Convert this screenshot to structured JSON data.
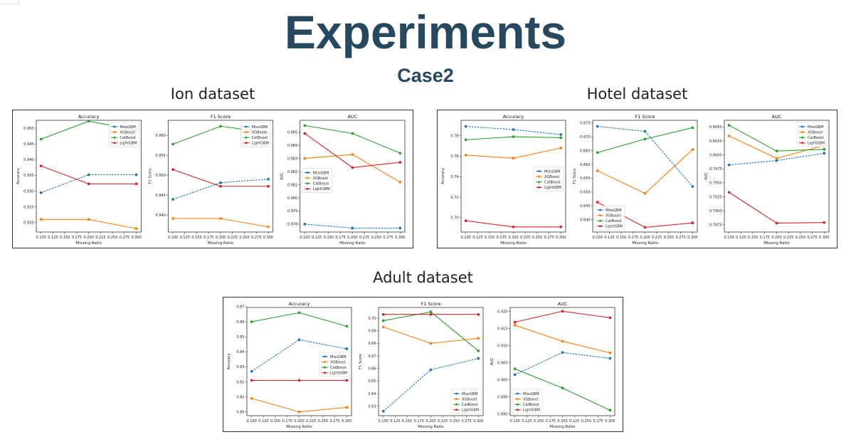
{
  "page": {
    "title": "Experiments",
    "subtitle": "Case2"
  },
  "series_colors": {
    "MissGBM": "#1f77b4",
    "XGBoost": "#ff7f0e",
    "CatBoost": "#2ca02c",
    "LightGBM": "#d62728"
  },
  "chart_data": [
    {
      "dataset": "Ion dataset",
      "subplots": [
        {
          "type": "line",
          "title": "Accuracy",
          "xlabel": "Missing Ratio",
          "ylabel": "Accuracy",
          "x": [
            0.1,
            0.2,
            0.3
          ],
          "xlim": [
            0.09,
            0.31
          ],
          "ylim": [
            0.917,
            0.9525
          ],
          "xticks": [
            "0.100",
            "0.125",
            "0.150",
            "0.175",
            "0.200",
            "0.225",
            "0.250",
            "0.275",
            "0.300"
          ],
          "yticks": [
            0.92,
            0.925,
            0.93,
            0.935,
            0.94,
            0.945,
            0.95
          ],
          "ydec": 3,
          "legend": "top-right",
          "series": [
            {
              "name": "MissGBM",
              "values": [
                0.9295,
                0.9352,
                0.9352
              ]
            },
            {
              "name": "XGBoost",
              "values": [
                0.921,
                0.921,
                0.9181
              ]
            },
            {
              "name": "CatBoost",
              "values": [
                0.9465,
                0.9522,
                0.9494
              ]
            },
            {
              "name": "LightGBM",
              "values": [
                0.938,
                0.9323,
                0.9323
              ]
            }
          ]
        },
        {
          "type": "line",
          "title": "F1 Score",
          "xlabel": "Missing Ratio",
          "ylabel": "F1 Score",
          "x": [
            0.1,
            0.2,
            0.3
          ],
          "xlim": [
            0.09,
            0.31
          ],
          "ylim": [
            0.9357,
            0.9638
          ],
          "xticks": [
            "0.100",
            "0.125",
            "0.150",
            "0.175",
            "0.200",
            "0.225",
            "0.250",
            "0.275",
            "0.300"
          ],
          "yticks": [
            0.94,
            0.945,
            0.95,
            0.955,
            0.96
          ],
          "ydec": 3,
          "legend": "top-right",
          "series": [
            {
              "name": "MissGBM",
              "values": [
                0.9439,
                0.9481,
                0.949
              ]
            },
            {
              "name": "XGBoost",
              "values": [
                0.9391,
                0.9391,
                0.937
              ]
            },
            {
              "name": "CatBoost",
              "values": [
                0.9578,
                0.9623,
                0.9607
              ]
            },
            {
              "name": "LightGBM",
              "values": [
                0.9514,
                0.9472,
                0.9472
              ]
            }
          ]
        },
        {
          "type": "line",
          "title": "AUC",
          "xlabel": "Missing Ratio",
          "ylabel": "AUC",
          "x": [
            0.1,
            0.2,
            0.3
          ],
          "xlim": [
            0.09,
            0.31
          ],
          "ylim": [
            0.9774,
            0.9859
          ],
          "xticks": [
            "0.100",
            "0.125",
            "0.150",
            "0.175",
            "0.200",
            "0.225",
            "0.250",
            "0.275",
            "0.300"
          ],
          "yticks": [
            0.978,
            0.979,
            0.98,
            0.981,
            0.982,
            0.983,
            0.984,
            0.985
          ],
          "ydec": 3,
          "legend": "center-left",
          "series": [
            {
              "name": "MissGBM",
              "values": [
                0.978,
                0.9777,
                0.9777
              ]
            },
            {
              "name": "XGBoost",
              "values": [
                0.983,
                0.9833,
                0.9812
              ]
            },
            {
              "name": "CatBoost",
              "values": [
                0.9855,
                0.9849,
                0.9834
              ]
            },
            {
              "name": "LightGBM",
              "values": [
                0.9849,
                0.9823,
                0.9827
              ]
            }
          ]
        }
      ]
    },
    {
      "dataset": "Hotel dataset",
      "subplots": [
        {
          "type": "line",
          "title": "Accuracy",
          "xlabel": "Missing Ratio",
          "ylabel": "Accuracy",
          "x": [
            0.1,
            0.2,
            0.3
          ],
          "xlim": [
            0.09,
            0.31
          ],
          "ylim": [
            0.686,
            0.795
          ],
          "xticks": [
            "0.100",
            "0.125",
            "0.150",
            "0.175",
            "0.200",
            "0.225",
            "0.250",
            "0.275",
            "0.300"
          ],
          "yticks": [
            0.7,
            0.72,
            0.74,
            0.76,
            0.78
          ],
          "ydec": 2,
          "legend": "center-right",
          "series": [
            {
              "name": "MissGBM",
              "values": [
                0.789,
                0.786,
                0.781
              ]
            },
            {
              "name": "XGBoost",
              "values": [
                0.761,
                0.758,
                0.768
              ]
            },
            {
              "name": "CatBoost",
              "values": [
                0.776,
                0.779,
                0.778
              ]
            },
            {
              "name": "LightGBM",
              "values": [
                0.697,
                0.691,
                0.691
              ]
            }
          ]
        },
        {
          "type": "line",
          "title": "F1 Score",
          "xlabel": "Missing Ratio",
          "ylabel": "F1 Score",
          "x": [
            0.1,
            0.2,
            0.3
          ],
          "xlim": [
            0.09,
            0.31
          ],
          "ylim": [
            0.6355,
            0.676
          ],
          "xticks": [
            "0.100",
            "0.125",
            "0.150",
            "0.175",
            "0.200",
            "0.225",
            "0.250",
            "0.275",
            "0.300"
          ],
          "yticks": [
            0.64,
            0.645,
            0.65,
            0.655,
            0.66,
            0.665,
            0.67,
            0.675
          ],
          "ydec": 3,
          "legend": "bottom-left",
          "series": [
            {
              "name": "MissGBM",
              "values": [
                0.6738,
                0.672,
                0.652
              ]
            },
            {
              "name": "XGBoost",
              "values": [
                0.6577,
                0.6495,
                0.6654
              ]
            },
            {
              "name": "CatBoost",
              "values": [
                0.6643,
                0.6692,
                0.6733
              ]
            },
            {
              "name": "LightGBM",
              "values": [
                0.6463,
                0.6372,
                0.6388
              ]
            }
          ]
        },
        {
          "type": "line",
          "title": "AUC",
          "xlabel": "Missing Ratio",
          "ylabel": "AUC",
          "x": [
            0.1,
            0.2,
            0.3
          ],
          "xlim": [
            0.09,
            0.31
          ],
          "ylim": [
            0.7862,
            0.8062
          ],
          "xticks": [
            "0.100",
            "0.125",
            "0.150",
            "0.175",
            "0.200",
            "0.225",
            "0.250",
            "0.275",
            "0.300"
          ],
          "yticks": [
            0.7875,
            0.79,
            0.7925,
            0.795,
            0.7975,
            0.8,
            0.8025,
            0.805
          ],
          "ydec": 4,
          "legend": "top-right",
          "series": [
            {
              "name": "MissGBM",
              "values": [
                0.7982,
                0.799,
                0.8003
              ]
            },
            {
              "name": "XGBoost",
              "values": [
                0.8034,
                0.7994,
                0.8017
              ]
            },
            {
              "name": "CatBoost",
              "values": [
                0.8053,
                0.8007,
                0.801
              ]
            },
            {
              "name": "LightGBM",
              "values": [
                0.7933,
                0.7878,
                0.7879
              ]
            }
          ]
        }
      ]
    },
    {
      "dataset": "Adult dataset",
      "subplots": [
        {
          "type": "line",
          "title": "Accuracy",
          "xlabel": "Missing Ratio",
          "ylabel": "Accuracy",
          "x": [
            0.1,
            0.2,
            0.3
          ],
          "xlim": [
            0.09,
            0.31
          ],
          "ylim": [
            0.7975,
            0.8695
          ],
          "xticks": [
            "0.100",
            "0.125",
            "0.150",
            "0.175",
            "0.200",
            "0.225",
            "0.250",
            "0.275",
            "0.300"
          ],
          "yticks": [
            0.8,
            0.81,
            0.82,
            0.83,
            0.84,
            0.85,
            0.86,
            0.87
          ],
          "ydec": 2,
          "legend": "center-right",
          "series": [
            {
              "name": "MissGBM",
              "values": [
                0.827,
                0.848,
                0.842
              ]
            },
            {
              "name": "XGBoost",
              "values": [
                0.809,
                0.8,
                0.803
              ]
            },
            {
              "name": "CatBoost",
              "values": [
                0.86,
                0.866,
                0.857
              ]
            },
            {
              "name": "LightGBM",
              "values": [
                0.821,
                0.821,
                0.821
              ]
            }
          ]
        },
        {
          "type": "line",
          "title": "F1 Score",
          "xlabel": "Missing Ratio",
          "ylabel": "F1 Score",
          "x": [
            0.1,
            0.2,
            0.3
          ],
          "xlim": [
            0.09,
            0.31
          ],
          "ylim": [
            0.6225,
            0.7085
          ],
          "xticks": [
            "0.100",
            "0.125",
            "0.150",
            "0.175",
            "0.200",
            "0.225",
            "0.250",
            "0.275",
            "0.300"
          ],
          "yticks": [
            0.63,
            0.64,
            0.65,
            0.66,
            0.67,
            0.68,
            0.69,
            0.7
          ],
          "ydec": 2,
          "legend": "bottom-right",
          "series": [
            {
              "name": "MissGBM",
              "values": [
                0.626,
                0.659,
                0.668
              ]
            },
            {
              "name": "XGBoost",
              "values": [
                0.693,
                0.68,
                0.684
              ]
            },
            {
              "name": "CatBoost",
              "values": [
                0.698,
                0.705,
                0.674
              ]
            },
            {
              "name": "LightGBM",
              "values": [
                0.703,
                0.703,
                0.703
              ]
            }
          ]
        },
        {
          "type": "line",
          "title": "AUC",
          "xlabel": "Missing Ratio",
          "ylabel": "AUC",
          "x": [
            0.1,
            0.2,
            0.3
          ],
          "xlim": [
            0.09,
            0.31
          ],
          "ylim": [
            0.8895,
            0.9212
          ],
          "xticks": [
            "0.100",
            "0.125",
            "0.150",
            "0.175",
            "0.200",
            "0.225",
            "0.250",
            "0.275",
            "0.300"
          ],
          "yticks": [
            0.89,
            0.895,
            0.9,
            0.905,
            0.91,
            0.915,
            0.92
          ],
          "ydec": 3,
          "legend": "bottom-left",
          "series": [
            {
              "name": "MissGBM",
              "values": [
                0.9015,
                0.908,
                0.9063
              ]
            },
            {
              "name": "XGBoost",
              "values": [
                0.916,
                0.9113,
                0.9079
              ]
            },
            {
              "name": "CatBoost",
              "values": [
                0.9032,
                0.8976,
                0.8911
              ]
            },
            {
              "name": "LightGBM",
              "values": [
                0.9169,
                0.9201,
                0.9182
              ]
            }
          ]
        }
      ]
    }
  ]
}
